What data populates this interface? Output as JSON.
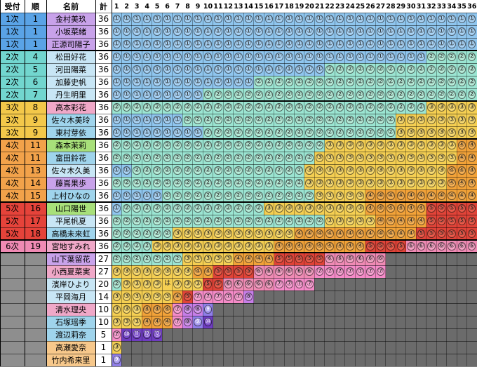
{
  "headers": {
    "uketsuke": "受付",
    "jun": "順",
    "namae": "名前",
    "kei": "計"
  },
  "column_numbers": [
    "1",
    "2",
    "3",
    "4",
    "5",
    "6",
    "7",
    "8",
    "9",
    "10",
    "11",
    "12",
    "13",
    "14",
    "15",
    "16",
    "17",
    "18",
    "19",
    "20",
    "21",
    "22",
    "23",
    "24",
    "25",
    "26",
    "27",
    "28",
    "29",
    "30",
    "31",
    "32",
    "33",
    "34",
    "35",
    "36"
  ],
  "symbols": {
    "1": "①",
    "2": "②",
    "3": "③",
    "4": "④",
    "5": "⑤",
    "6": "⑥",
    "7": "⑦",
    "8": "⑧",
    "9": "⑨",
    "10": "⑩",
    "11": "⑪",
    "12": "⑫",
    "ha": "は"
  },
  "rows": [
    {
      "round": "1次",
      "order": "1",
      "name": "金村美玖",
      "total": "36",
      "cells": "1*36"
    },
    {
      "round": "1次",
      "order": "1",
      "name": "小坂菜緒",
      "total": "36",
      "cells": "1*36"
    },
    {
      "round": "1次",
      "order": "1",
      "name": "正源司陽子",
      "total": "36",
      "cells": "1*36"
    },
    {
      "round": "2次",
      "order": "4",
      "name": "松田好花",
      "total": "36",
      "cells": "1*31,2*5"
    },
    {
      "round": "2次",
      "order": "5",
      "name": "河田陽菜",
      "total": "36",
      "cells": "1*21,2*15"
    },
    {
      "round": "2次",
      "order": "6",
      "name": "加藤史帆",
      "total": "36",
      "cells": "1*14,2*22"
    },
    {
      "round": "2次",
      "order": "7",
      "name": "丹生明里",
      "total": "36",
      "cells": "1*9,2*27"
    },
    {
      "round": "3次",
      "order": "8",
      "name": "高本彩花",
      "total": "36",
      "cells": "2*31,3*5"
    },
    {
      "round": "3次",
      "order": "9",
      "name": "佐々木美玲",
      "total": "36",
      "cells": "1*7,2*21,3*8"
    },
    {
      "round": "3次",
      "order": "9",
      "name": "東村芽依",
      "total": "36",
      "cells": "1*9,2*19,3*8"
    },
    {
      "round": "4次",
      "order": "11",
      "name": "森本茉莉",
      "total": "36",
      "cells": "2*21,3*13,4*2"
    },
    {
      "round": "4次",
      "order": "11",
      "name": "富田鈴花",
      "total": "36",
      "cells": "2*20,3*14,4*2"
    },
    {
      "round": "4次",
      "order": "13",
      "name": "佐々木久美",
      "total": "36",
      "cells": "1*2,2*17,3*14,4*3"
    },
    {
      "round": "4次",
      "order": "14",
      "name": "藤嶌果歩",
      "total": "36",
      "cells": "2*19,3*14,4*3"
    },
    {
      "round": "4次",
      "order": "15",
      "name": "上村ひなの",
      "total": "36",
      "cells": "1*5,2*15,3*5,4*11"
    },
    {
      "round": "5次",
      "order": "16",
      "name": "山口陽世",
      "total": "36",
      "cells": "1*1,2*14,3*10,4*6,5*5"
    },
    {
      "round": "5次",
      "order": "17",
      "name": "平尾帆夏",
      "total": "36",
      "cells": "2*21,3*5,4*5,5*5"
    },
    {
      "round": "5次",
      "order": "18",
      "name": "高橋未来虹",
      "total": "36",
      "cells": "2*6,3*12,4*12,5*6"
    },
    {
      "round": "6次",
      "order": "19",
      "name": "宮地すみれ",
      "total": "36",
      "cells": "2*4,3*12,4*9,5*4,6*7"
    },
    {
      "round": "",
      "order": "",
      "name": "山下葉留花",
      "total": "27",
      "cells": "2*7,3*5,4*4,5*5,6*6"
    },
    {
      "round": "",
      "order": "",
      "name": "小西夏菜実",
      "total": "27",
      "cells": "3*8,4*2,5*4,6*6,7*7"
    },
    {
      "round": "",
      "order": "",
      "name": "濱岸ひより",
      "total": "20",
      "cells": "2*1,3*4,ha*1,3*3,5*2,6*5,7*4"
    },
    {
      "round": "",
      "order": "",
      "name": "平岡海月",
      "total": "14",
      "cells": "3*6,4*1,5*1,7*5,8*1"
    },
    {
      "round": "",
      "order": "",
      "name": "清水理央",
      "total": "10",
      "cells": "3*3,4*3,7*1,8*2,9*1"
    },
    {
      "round": "",
      "order": "",
      "name": "石塚瑶季",
      "total": "10",
      "cells": "3*3,4*3,7*1,8*1,9*1,10*1"
    },
    {
      "round": "",
      "order": "",
      "name": "渡辺莉奈",
      "total": "5",
      "cells": "7*1,10*1,11*1,12*2"
    },
    {
      "round": "",
      "order": "",
      "name": "高瀬愛奈",
      "total": "1",
      "cells": "3*1"
    },
    {
      "round": "",
      "order": "",
      "name": "竹内希来里",
      "total": "1",
      "cells": "9*1"
    }
  ],
  "colors": {
    "round": {
      "1次": "#5aa3e6",
      "2次": "#72d6cf",
      "3次": "#f3c84a",
      "4次": "#f2a24a",
      "5次": "#e5433a",
      "6次": "#f08ab4",
      "": "#8e8e8e"
    },
    "row_bg": {
      "1次": "#8ec6ee",
      "2次": "#8ec6ee",
      "3次": "#f6ce7a",
      "4次": "#f6ce7a",
      "5x": "#f6ce7a",
      "": "#a3a3a3"
    },
    "cell": {
      "1": "#8fc6ef",
      "2": "#9be5d2",
      "3": "#f5cf52",
      "4": "#f2a238",
      "5": "#e04338",
      "6": "#f08ab4",
      "7": "#f58bc8",
      "8": "#c77ee8",
      "9": "#8f7ee8",
      "10": "#6e3cc0",
      "11": "#6e3cc0",
      "12": "#6e3cc0",
      "ha": "#f5cf52"
    },
    "badge": {
      "1": "#a9d3f5",
      "2": "#b7ecd9",
      "3": "#f8da70",
      "4": "#f5b055",
      "5": "#ea5a4a",
      "6": "#f5a3c5",
      "7": "#f9a3d3",
      "8": "#d59aee",
      "9": "#a598ee",
      "10": "#7b4ccb",
      "11": "#7b4ccb",
      "12": "#7b4ccb",
      "ha": "#f8da70"
    },
    "name_bg": [
      "#c8a2ea",
      "#c8a2ea",
      "#c8a2ea",
      "#c8e6f5",
      "#c8e6f5",
      "#c8e6f5",
      "#c8e6f5",
      "#f0a8c8",
      "#9fd4ec",
      "#9fd4ec",
      "#a8e07a",
      "#9fd4ec",
      "#c8e6f5",
      "#c8a2ea",
      "#9fd4ec",
      "#a8e07a",
      "#c8e6f5",
      "#9fd4ec",
      "#f0a8c8",
      "#c8a2ea",
      "#f0a8c8",
      "#c8e6f5",
      "#c8e6f5",
      "#f0a8c8",
      "#9fd4ec",
      "#9fd4ec",
      "#f7c88b",
      "#f7c88b"
    ],
    "empty": "#6b6b6b",
    "grid": "#000000"
  }
}
